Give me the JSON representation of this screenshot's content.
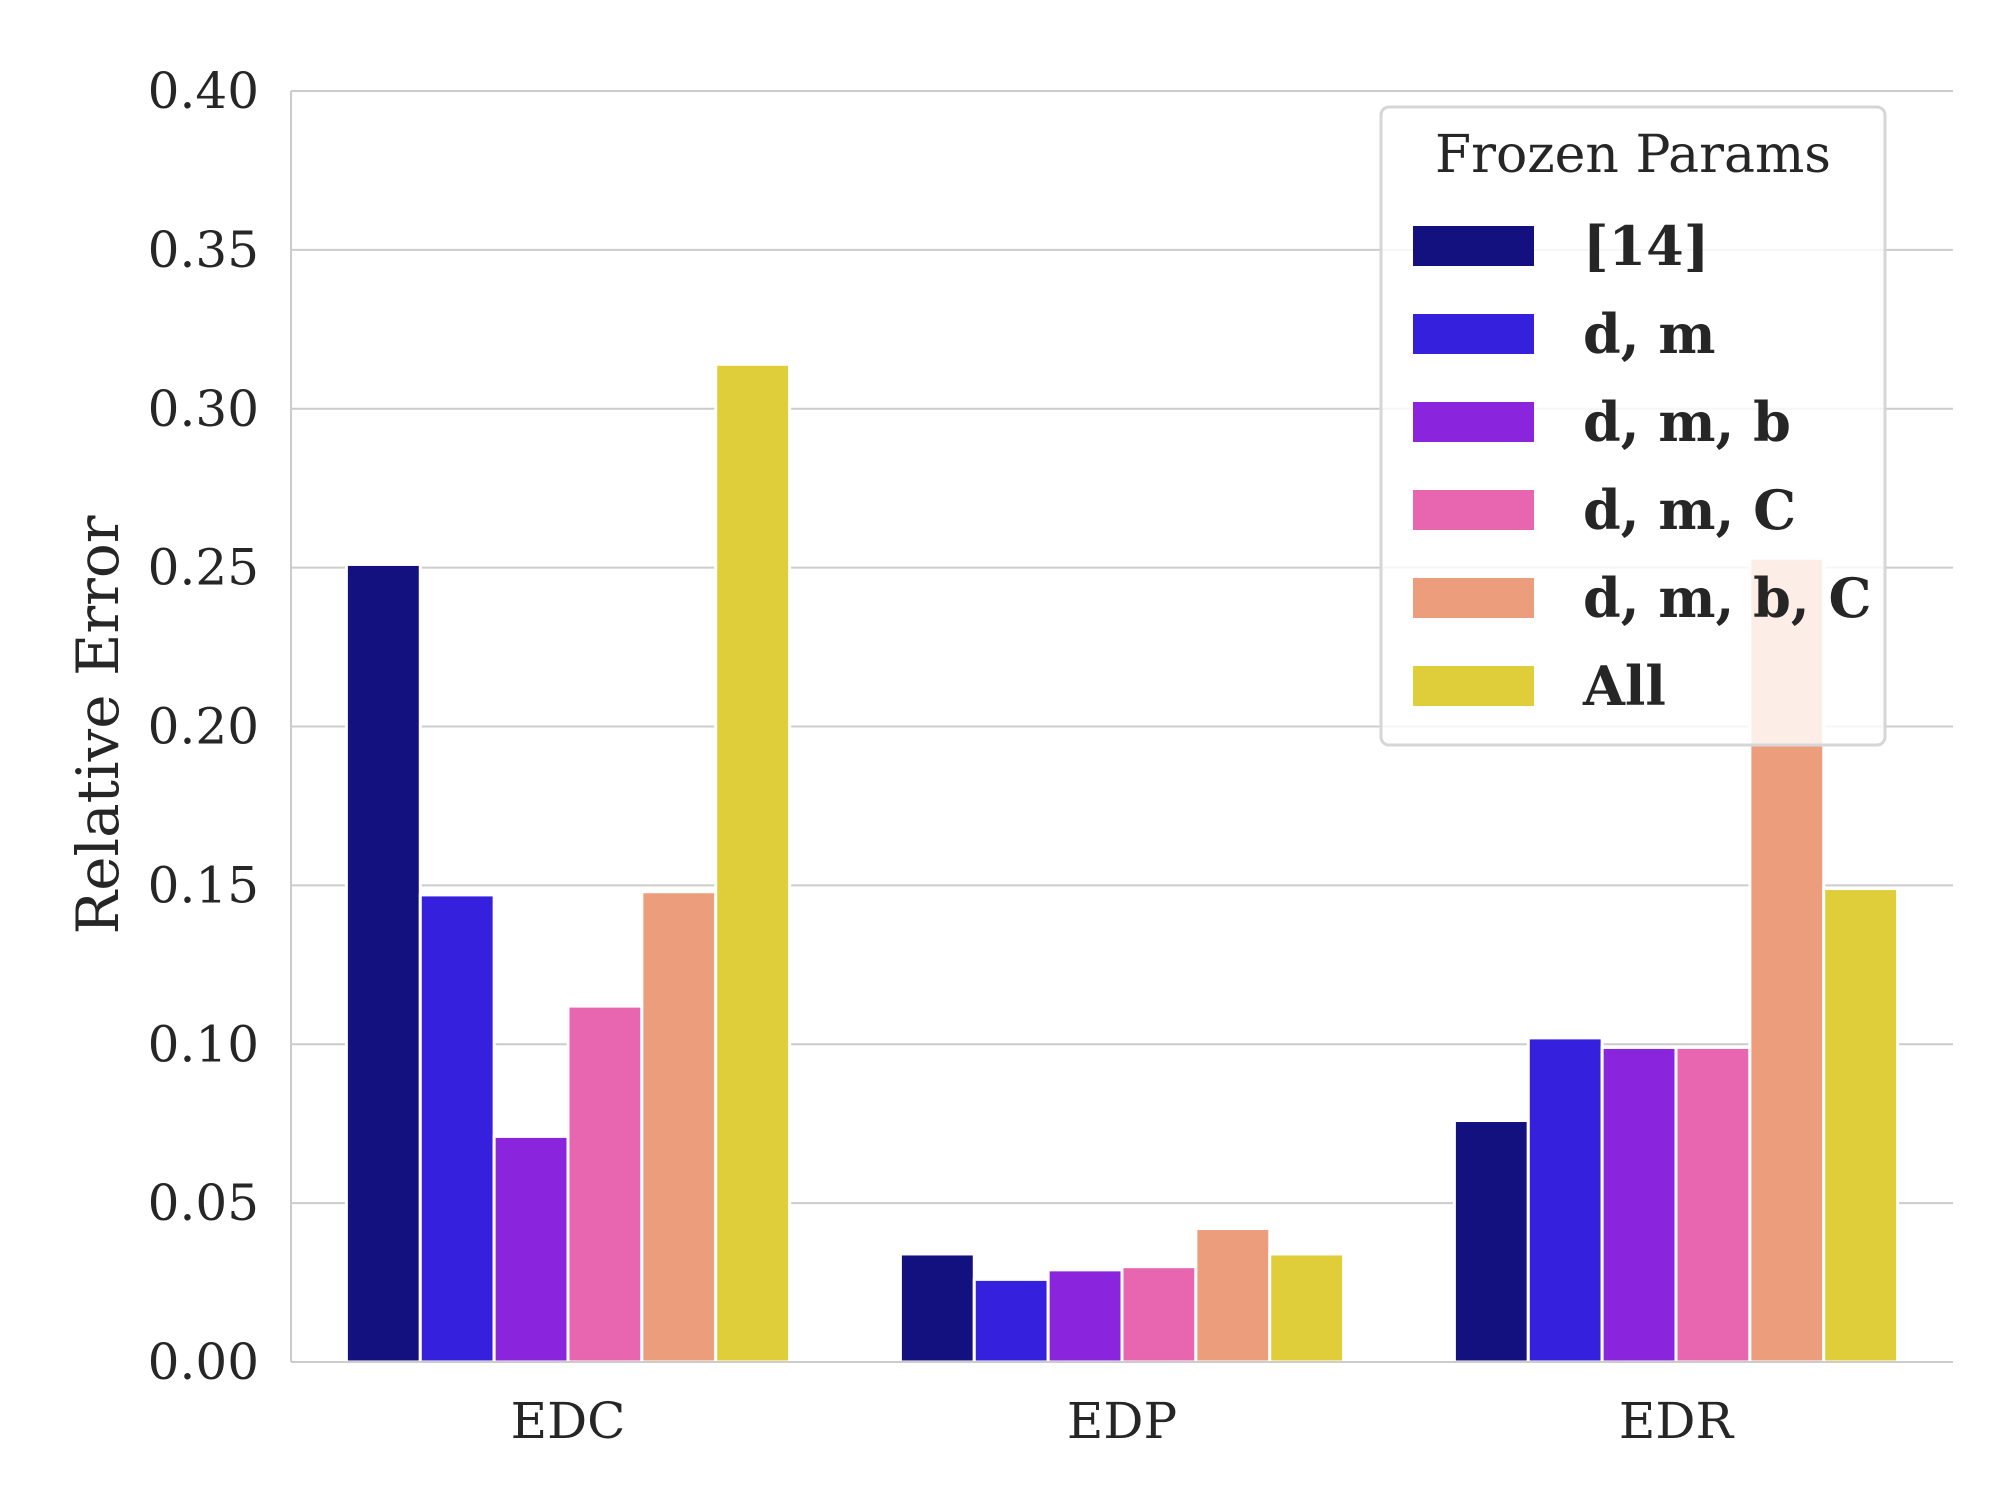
{
  "chart_data": {
    "type": "bar",
    "title": "",
    "xlabel": "",
    "ylabel": "Relative Error",
    "ylim": [
      0,
      0.4
    ],
    "yticks": [
      "0.00",
      "0.05",
      "0.10",
      "0.15",
      "0.20",
      "0.25",
      "0.30",
      "0.35",
      "0.40"
    ],
    "grid": "horizontal",
    "categories": [
      "EDC",
      "EDP",
      "EDR"
    ],
    "legend": {
      "title": "Frozen Params",
      "placement": "top-right"
    },
    "series": [
      {
        "name": "[14]",
        "color": "#12117f",
        "values": [
          0.251,
          0.034,
          0.076
        ]
      },
      {
        "name": "d, m",
        "color": "#3520de",
        "values": [
          0.147,
          0.026,
          0.102
        ]
      },
      {
        "name": "d, m, b",
        "color": "#8a25dd",
        "values": [
          0.071,
          0.029,
          0.099
        ]
      },
      {
        "name": "d, m, C",
        "color": "#e866b0",
        "values": [
          0.112,
          0.03,
          0.099
        ]
      },
      {
        "name": "d, m, b, C",
        "color": "#ec9e7c",
        "values": [
          0.148,
          0.042,
          0.253
        ]
      },
      {
        "name": "All",
        "color": "#e0cd3a",
        "values": [
          0.314,
          0.034,
          0.149
        ]
      }
    ]
  }
}
